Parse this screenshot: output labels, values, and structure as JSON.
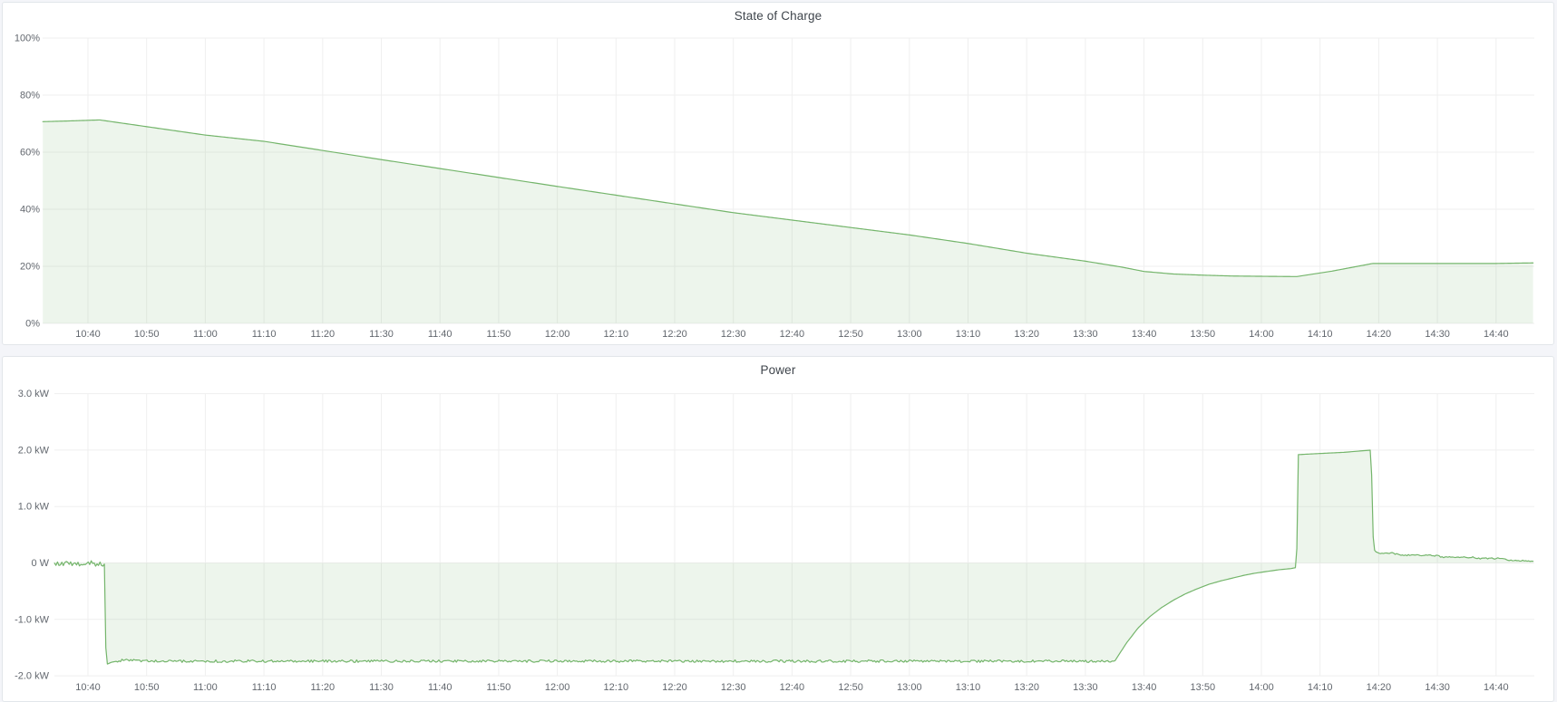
{
  "dashboard": {
    "theme": "light",
    "background": "#f4f5f9",
    "panel_background": "#ffffff",
    "panel_border": "#e2e6ea"
  },
  "colors": {
    "series_green": "#74b56b",
    "fill_opacity": 0.13,
    "grid": "#efefef",
    "axis_text": "#62676e",
    "title_text": "#3f454c"
  },
  "time_ticks": [
    {
      "t": 10,
      "label": "10:40"
    },
    {
      "t": 20,
      "label": "10:50"
    },
    {
      "t": 30,
      "label": "11:00"
    },
    {
      "t": 40,
      "label": "11:10"
    },
    {
      "t": 50,
      "label": "11:20"
    },
    {
      "t": 60,
      "label": "11:30"
    },
    {
      "t": 70,
      "label": "11:40"
    },
    {
      "t": 80,
      "label": "11:50"
    },
    {
      "t": 90,
      "label": "12:00"
    },
    {
      "t": 100,
      "label": "12:10"
    },
    {
      "t": 110,
      "label": "12:20"
    },
    {
      "t": 120,
      "label": "12:30"
    },
    {
      "t": 130,
      "label": "12:40"
    },
    {
      "t": 140,
      "label": "12:50"
    },
    {
      "t": 150,
      "label": "13:00"
    },
    {
      "t": 160,
      "label": "13:10"
    },
    {
      "t": 170,
      "label": "13:20"
    },
    {
      "t": 180,
      "label": "13:30"
    },
    {
      "t": 190,
      "label": "13:40"
    },
    {
      "t": 200,
      "label": "13:50"
    },
    {
      "t": 210,
      "label": "14:00"
    },
    {
      "t": 220,
      "label": "14:10"
    },
    {
      "t": 230,
      "label": "14:20"
    },
    {
      "t": 240,
      "label": "14:30"
    },
    {
      "t": 250,
      "label": "14:40"
    }
  ],
  "time_reference": "t = minutes since 10:30",
  "chart_data": [
    {
      "type": "area",
      "title": "State of Charge",
      "unit": "percent",
      "ylim": [
        0,
        100
      ],
      "x_domain": [
        2.3,
        256.5
      ],
      "grid": true,
      "legend": "none",
      "y_ticks": [
        {
          "v": 100,
          "label": "100%"
        },
        {
          "v": 80,
          "label": "80%"
        },
        {
          "v": 60,
          "label": "60%"
        },
        {
          "v": 40,
          "label": "40%"
        },
        {
          "v": 20,
          "label": "20%"
        },
        {
          "v": 0,
          "label": "0%"
        }
      ],
      "points": [
        [
          2.3,
          70.7
        ],
        [
          6,
          70.9
        ],
        [
          12,
          71.3
        ],
        [
          30,
          66.0
        ],
        [
          40,
          63.8
        ],
        [
          60,
          57.4
        ],
        [
          90,
          48.0
        ],
        [
          120,
          38.8
        ],
        [
          150,
          31.0
        ],
        [
          160,
          28.0
        ],
        [
          170,
          24.6
        ],
        [
          180,
          21.8
        ],
        [
          186,
          19.8
        ],
        [
          190,
          18.2
        ],
        [
          195,
          17.3
        ],
        [
          200,
          16.9
        ],
        [
          205,
          16.6
        ],
        [
          210,
          16.5
        ],
        [
          216,
          16.4
        ],
        [
          222,
          18.3
        ],
        [
          229,
          21.0
        ],
        [
          240,
          21.0
        ],
        [
          250,
          21.0
        ],
        [
          256.5,
          21.2
        ]
      ],
      "noise_segments": []
    },
    {
      "type": "area",
      "title": "Power",
      "unit": "watt",
      "ylim": [
        -2.06,
        3.08
      ],
      "x_domain": [
        4.3,
        256.5
      ],
      "grid": true,
      "legend": "none",
      "y_ticks": [
        {
          "v": 3,
          "label": "3.0 kW"
        },
        {
          "v": 2,
          "label": "2.0 kW"
        },
        {
          "v": 1,
          "label": "1.0 kW"
        },
        {
          "v": 0,
          "label": "0 W"
        },
        {
          "v": -1,
          "label": "-1.0 kW"
        },
        {
          "v": -2,
          "label": "-2.0 kW"
        }
      ],
      "points": [
        [
          4.3,
          -0.01
        ],
        [
          12.8,
          -0.02
        ],
        [
          13.1,
          -1.8
        ],
        [
          14,
          -1.76
        ],
        [
          16,
          -1.72
        ],
        [
          20,
          -1.74
        ],
        [
          185,
          -1.74
        ],
        [
          187,
          -1.42
        ],
        [
          189,
          -1.15
        ],
        [
          191,
          -0.95
        ],
        [
          193,
          -0.79
        ],
        [
          195,
          -0.66
        ],
        [
          197,
          -0.55
        ],
        [
          199,
          -0.46
        ],
        [
          201,
          -0.38
        ],
        [
          203,
          -0.32
        ],
        [
          205,
          -0.27
        ],
        [
          207,
          -0.22
        ],
        [
          209,
          -0.18
        ],
        [
          211,
          -0.15
        ],
        [
          213,
          -0.12
        ],
        [
          215,
          -0.1
        ],
        [
          216,
          -0.08
        ],
        [
          216.3,
          1.92
        ],
        [
          220,
          1.94
        ],
        [
          224,
          1.96
        ],
        [
          228.7,
          2.0
        ],
        [
          229.1,
          0.24
        ],
        [
          230,
          0.17
        ],
        [
          232,
          0.18
        ],
        [
          234,
          0.14
        ],
        [
          240,
          0.13
        ],
        [
          241,
          0.1
        ],
        [
          246,
          0.1
        ],
        [
          247,
          0.08
        ],
        [
          251,
          0.08
        ],
        [
          252,
          0.05
        ],
        [
          256.5,
          0.03
        ]
      ],
      "noise_segments": [
        {
          "t0": 4.3,
          "t1": 12.6,
          "amp": 0.04,
          "spikes": 0.05
        },
        {
          "t0": 15,
          "t1": 184.5,
          "amp": 0.022,
          "spikes": 0
        },
        {
          "t0": 229.5,
          "t1": 256.5,
          "amp": 0.012,
          "spikes": 0
        }
      ]
    }
  ]
}
